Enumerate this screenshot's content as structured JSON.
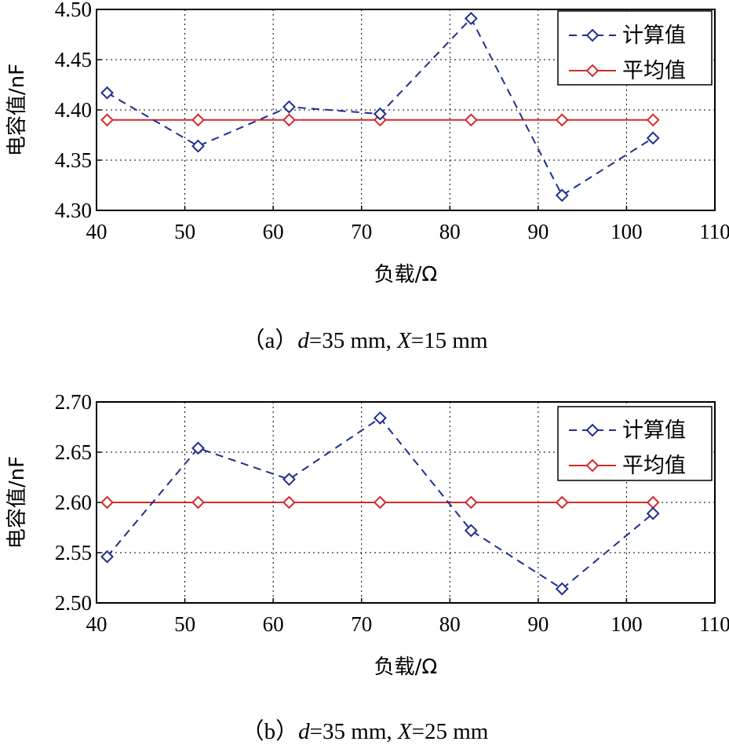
{
  "chart_data": [
    {
      "type": "line",
      "caption": {
        "prefix": "（a）",
        "d_var": "d",
        "d_val": "=35 mm, ",
        "x_var": "X",
        "x_val": "=15 mm"
      },
      "xlabel": "负载/Ω",
      "ylabel": "电容值/nF",
      "xlim": [
        40,
        110
      ],
      "ylim": [
        4.3,
        4.5
      ],
      "xticks": [
        "40",
        "50",
        "60",
        "70",
        "80",
        "90",
        "100",
        "110"
      ],
      "yticks": [
        "4.30",
        "4.35",
        "4.40",
        "4.45",
        "4.50"
      ],
      "grid": true,
      "legend_position": "top-right",
      "x": [
        41.2,
        51.5,
        61.8,
        72.1,
        82.4,
        92.7,
        103.0
      ],
      "series": [
        {
          "name": "计算值",
          "color": "#1f2f8f",
          "style": "dashed",
          "marker": "diamond",
          "values": [
            4.417,
            4.364,
            4.403,
            4.396,
            4.491,
            4.315,
            4.372
          ]
        },
        {
          "name": "平均值",
          "color": "#d42a2a",
          "style": "solid",
          "marker": "diamond",
          "values": [
            4.39,
            4.39,
            4.39,
            4.39,
            4.39,
            4.39,
            4.39
          ]
        }
      ]
    },
    {
      "type": "line",
      "caption": {
        "prefix": "（b）",
        "d_var": "d",
        "d_val": "=35 mm, ",
        "x_var": "X",
        "x_val": "=25 mm"
      },
      "xlabel": "负载/Ω",
      "ylabel": "电容值/nF",
      "xlim": [
        40,
        110
      ],
      "ylim": [
        2.5,
        2.7
      ],
      "xticks": [
        "40",
        "50",
        "60",
        "70",
        "80",
        "90",
        "100",
        "110"
      ],
      "yticks": [
        "2.50",
        "2.55",
        "2.60",
        "2.65",
        "2.70"
      ],
      "grid": true,
      "legend_position": "top-right",
      "x": [
        41.2,
        51.5,
        61.8,
        72.1,
        82.4,
        92.7,
        103.0
      ],
      "series": [
        {
          "name": "计算值",
          "color": "#1f2f8f",
          "style": "dashed",
          "marker": "diamond",
          "values": [
            2.546,
            2.654,
            2.623,
            2.684,
            2.572,
            2.514,
            2.589
          ]
        },
        {
          "name": "平均值",
          "color": "#d42a2a",
          "style": "solid",
          "marker": "diamond",
          "values": [
            2.6,
            2.6,
            2.6,
            2.6,
            2.6,
            2.6,
            2.6
          ]
        }
      ]
    }
  ]
}
